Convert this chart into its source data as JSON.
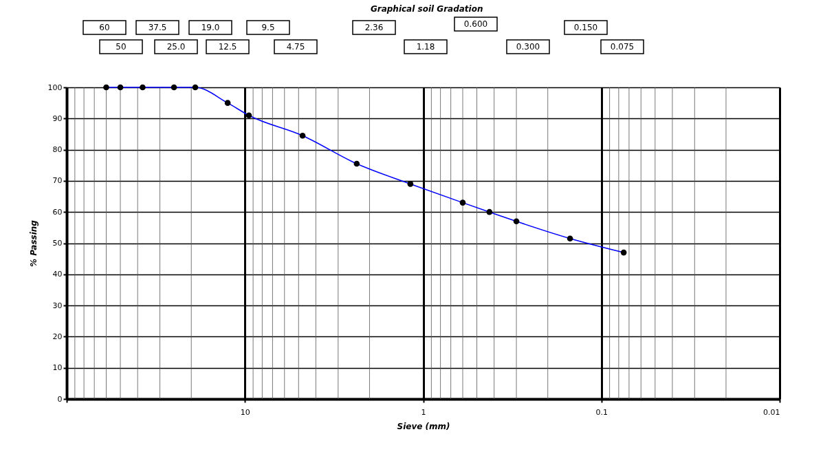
{
  "chart_data": {
    "type": "line",
    "title": "Graphical  soil Gradation",
    "xlabel": "Sieve (mm)",
    "ylabel": "% Passing",
    "annotations": [
      "60",
      "50",
      "37.5",
      "25.0",
      "19.0",
      "12.5",
      "9.5",
      "4.75",
      "2.36",
      "1.18",
      "0.600",
      "0.300",
      "0.150",
      "0.075"
    ],
    "x": [
      60,
      50,
      37.5,
      25,
      19,
      12.5,
      9.5,
      4.75,
      2.36,
      1.18,
      0.6,
      0.425,
      0.3,
      0.15,
      0.075
    ],
    "series": [
      {
        "color": "#0000ff",
        "marker": "none",
        "values": [
          100,
          100,
          100,
          100,
          100,
          95,
          91,
          84.5,
          75.5,
          69,
          63,
          60,
          57,
          51.5,
          47
        ]
      },
      {
        "type": "scatter",
        "color": "#000000",
        "marker": "circle",
        "values": [
          100,
          100,
          100,
          100,
          100,
          95,
          91,
          84.5,
          75.5,
          69,
          63,
          60,
          57,
          51.5,
          47
        ]
      }
    ],
    "log": "x",
    "xlim": [
      100,
      0.01
    ],
    "xticks": [
      {
        "value": 100,
        "label": null
      },
      10,
      1,
      0.1,
      0.01
    ],
    "ylim": [
      0,
      100
    ],
    "yticks": [
      0,
      10,
      20,
      30,
      40,
      50,
      60,
      70,
      80,
      90,
      100
    ],
    "grid": true
  }
}
